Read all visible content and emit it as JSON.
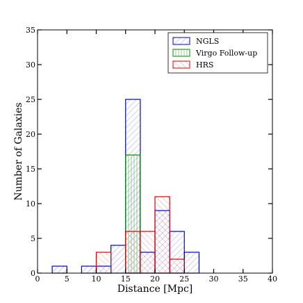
{
  "chart_data": {
    "type": "bar",
    "title": "",
    "xlabel": "Distance [Mpc]",
    "ylabel": "Number of Galaxies",
    "xlim": [
      0,
      40
    ],
    "ylim": [
      0,
      35
    ],
    "xticks": [
      0,
      5,
      10,
      15,
      20,
      25,
      30,
      35,
      40
    ],
    "yticks": [
      0,
      5,
      10,
      15,
      20,
      25,
      30,
      35
    ],
    "grid": false,
    "legend_position": "top-right",
    "histtype": "step-hatched",
    "series": [
      {
        "name": "NGLS",
        "color": "#0000cc",
        "hatch": "forward-diagonal",
        "bins": [
          {
            "x0": 2.5,
            "x1": 5.0,
            "count": 1
          },
          {
            "x0": 7.5,
            "x1": 10.0,
            "count": 1
          },
          {
            "x0": 10.0,
            "x1": 12.5,
            "count": 1
          },
          {
            "x0": 12.5,
            "x1": 15.0,
            "count": 4
          },
          {
            "x0": 15.0,
            "x1": 17.5,
            "count": 25
          },
          {
            "x0": 17.5,
            "x1": 20.0,
            "count": 3
          },
          {
            "x0": 20.0,
            "x1": 22.5,
            "count": 9
          },
          {
            "x0": 22.5,
            "x1": 25.0,
            "count": 6
          },
          {
            "x0": 25.0,
            "x1": 27.5,
            "count": 3
          }
        ]
      },
      {
        "name": "Virgo Follow-up",
        "color": "#008800",
        "hatch": "vertical",
        "bins": [
          {
            "x0": 15.0,
            "x1": 17.5,
            "count": 17
          }
        ]
      },
      {
        "name": "HRS",
        "color": "#dd0000",
        "hatch": "back-diagonal",
        "bins": [
          {
            "x0": 10.0,
            "x1": 12.5,
            "count": 3
          },
          {
            "x0": 15.0,
            "x1": 17.5,
            "count": 6
          },
          {
            "x0": 17.5,
            "x1": 20.0,
            "count": 6
          },
          {
            "x0": 20.0,
            "x1": 22.5,
            "count": 11
          },
          {
            "x0": 22.5,
            "x1": 25.0,
            "count": 2
          }
        ]
      }
    ]
  }
}
